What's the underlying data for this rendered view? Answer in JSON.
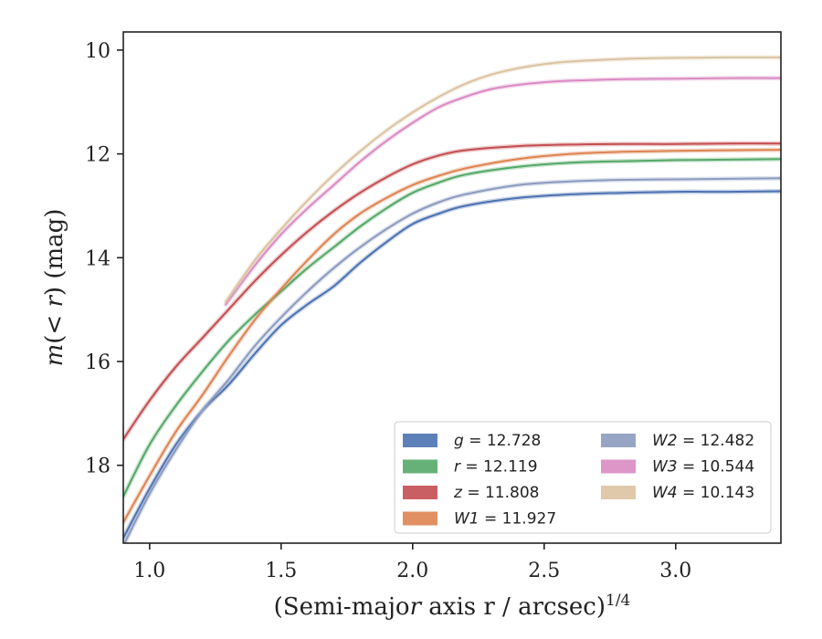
{
  "chart_data": {
    "type": "line",
    "xlabel": "(Semi-major axis r / arcsec)",
    "xlabel_italic": "r",
    "xlabel_exponent": "1/4",
    "ylabel": "m(< r) (mag)",
    "xlim": [
      0.9,
      3.4
    ],
    "ylim": [
      19.5,
      9.65
    ],
    "y_inverted": true,
    "xticks": [
      1.0,
      1.5,
      2.0,
      2.5,
      3.0
    ],
    "xtick_labels": [
      "1.0",
      "1.5",
      "2.0",
      "2.5",
      "3.0"
    ],
    "yticks": [
      10,
      12,
      14,
      16,
      18
    ],
    "ytick_labels": [
      "10",
      "12",
      "14",
      "16",
      "18"
    ],
    "grid": false,
    "legend_position": "lower-right",
    "legend_columns": 2,
    "series": [
      {
        "name": "g",
        "legend_label": "g = 12.728",
        "value_label": "12.728",
        "color": "#4c72b0",
        "x": [
          0.9,
          1.0,
          1.1,
          1.2,
          1.3,
          1.4,
          1.5,
          1.6,
          1.7,
          1.8,
          1.9,
          2.0,
          2.1,
          2.2,
          2.4,
          2.6,
          2.8,
          3.0,
          3.2,
          3.4
        ],
        "y": [
          19.4,
          18.45,
          17.6,
          16.95,
          16.45,
          15.85,
          15.3,
          14.9,
          14.55,
          14.1,
          13.7,
          13.35,
          13.15,
          13.0,
          12.85,
          12.78,
          12.75,
          12.73,
          12.73,
          12.72
        ]
      },
      {
        "name": "r",
        "legend_label": "r = 12.119",
        "value_label": "12.119",
        "color": "#55a868",
        "x": [
          0.9,
          1.0,
          1.1,
          1.2,
          1.3,
          1.4,
          1.5,
          1.6,
          1.7,
          1.8,
          1.9,
          2.0,
          2.1,
          2.2,
          2.4,
          2.6,
          2.8,
          3.0,
          3.2,
          3.4
        ],
        "y": [
          18.6,
          17.6,
          16.85,
          16.2,
          15.6,
          15.1,
          14.65,
          14.2,
          13.8,
          13.4,
          13.05,
          12.75,
          12.55,
          12.4,
          12.25,
          12.17,
          12.14,
          12.12,
          12.11,
          12.1
        ]
      },
      {
        "name": "z",
        "legend_label": "z = 11.808",
        "value_label": "11.808",
        "color": "#c44e52",
        "x": [
          0.9,
          1.0,
          1.1,
          1.2,
          1.3,
          1.4,
          1.5,
          1.6,
          1.7,
          1.8,
          1.9,
          2.0,
          2.1,
          2.2,
          2.4,
          2.6,
          2.8,
          3.0,
          3.2,
          3.4
        ],
        "y": [
          17.5,
          16.75,
          16.1,
          15.55,
          15.0,
          14.45,
          13.95,
          13.5,
          13.1,
          12.75,
          12.45,
          12.2,
          12.03,
          11.93,
          11.85,
          11.82,
          11.81,
          11.81,
          11.8,
          11.8
        ]
      },
      {
        "name": "W1",
        "legend_label": "W1 = 11.927",
        "value_label": "11.927",
        "color": "#dd8452",
        "x": [
          0.9,
          1.0,
          1.1,
          1.2,
          1.3,
          1.4,
          1.5,
          1.6,
          1.7,
          1.8,
          1.9,
          2.0,
          2.1,
          2.2,
          2.4,
          2.6,
          2.8,
          3.0,
          3.2,
          3.4
        ],
        "y": [
          19.1,
          18.2,
          17.35,
          16.65,
          15.9,
          15.2,
          14.6,
          14.05,
          13.55,
          13.15,
          12.85,
          12.6,
          12.42,
          12.28,
          12.1,
          12.0,
          11.96,
          11.94,
          11.93,
          11.92
        ]
      },
      {
        "name": "W2",
        "legend_label": "W2 = 12.482",
        "value_label": "12.482",
        "color": "#8c9bbf",
        "x": [
          0.9,
          1.0,
          1.1,
          1.2,
          1.3,
          1.4,
          1.5,
          1.6,
          1.7,
          1.8,
          1.9,
          2.0,
          2.1,
          2.2,
          2.4,
          2.6,
          2.8,
          3.0,
          3.2,
          3.4
        ],
        "y": [
          19.55,
          18.55,
          17.7,
          16.95,
          16.35,
          15.7,
          15.15,
          14.65,
          14.2,
          13.8,
          13.45,
          13.15,
          12.93,
          12.78,
          12.6,
          12.53,
          12.5,
          12.49,
          12.48,
          12.47
        ]
      },
      {
        "name": "W3",
        "legend_label": "W3 = 10.544",
        "value_label": "10.544",
        "color": "#da8bc3",
        "x": [
          1.29,
          1.4,
          1.5,
          1.6,
          1.7,
          1.8,
          1.9,
          2.0,
          2.1,
          2.2,
          2.3,
          2.4,
          2.5,
          2.6,
          2.8,
          3.0,
          3.2,
          3.4
        ],
        "y": [
          14.9,
          14.15,
          13.55,
          13.05,
          12.6,
          12.15,
          11.75,
          11.4,
          11.1,
          10.9,
          10.75,
          10.67,
          10.62,
          10.59,
          10.56,
          10.55,
          10.54,
          10.54
        ]
      },
      {
        "name": "W4",
        "legend_label": "W4 = 10.143",
        "value_label": "10.143",
        "color": "#dbc3a1",
        "x": [
          1.29,
          1.4,
          1.5,
          1.6,
          1.7,
          1.8,
          1.9,
          2.0,
          2.1,
          2.2,
          2.3,
          2.4,
          2.5,
          2.6,
          2.8,
          3.0,
          3.2,
          3.4
        ],
        "y": [
          14.85,
          14.05,
          13.45,
          12.9,
          12.4,
          11.95,
          11.55,
          11.2,
          10.9,
          10.65,
          10.47,
          10.35,
          10.27,
          10.22,
          10.17,
          10.15,
          10.14,
          10.14
        ]
      }
    ]
  }
}
